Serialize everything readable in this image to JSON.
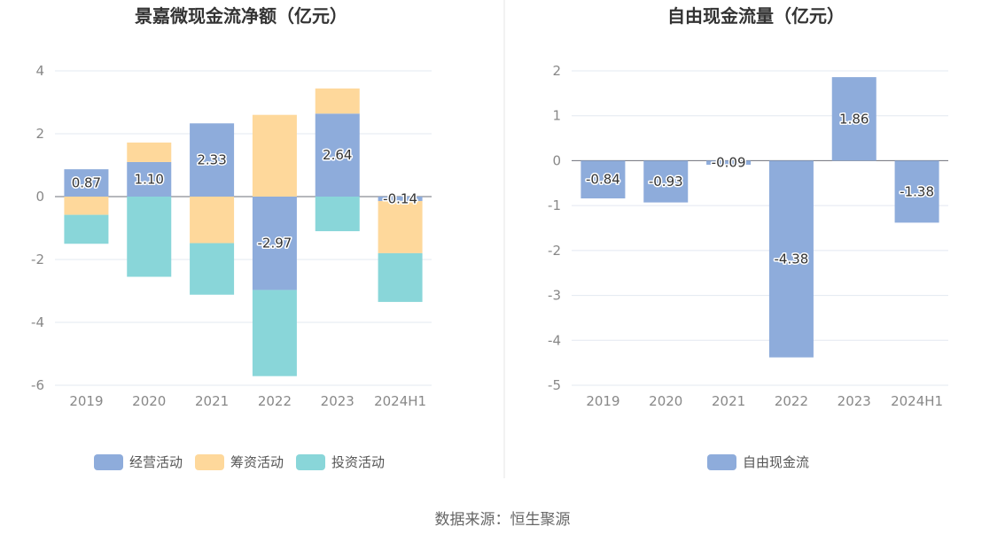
{
  "source_text": "数据来源：恒生聚源",
  "chart_data": [
    {
      "type": "bar",
      "stacked": true,
      "title": "景嘉微现金流净额（亿元）",
      "categories": [
        "2019",
        "2020",
        "2021",
        "2022",
        "2023",
        "2024H1"
      ],
      "ylim": [
        -6,
        4
      ],
      "yticks": [
        "4",
        "2",
        "0",
        "-2",
        "-4",
        "-6"
      ],
      "grid": true,
      "legend_position": "bottom",
      "series": [
        {
          "name": "经营活动",
          "color": "#8eacdb",
          "values": [
            0.87,
            1.1,
            2.33,
            -2.97,
            2.64,
            -0.14
          ],
          "labels": [
            "0.87",
            "1.10",
            "2.33",
            "-2.97",
            "2.64",
            "-0.14"
          ]
        },
        {
          "name": "筹资活动",
          "color": "#fed89b",
          "values": [
            -0.58,
            0.62,
            -1.48,
            2.6,
            0.8,
            -1.66
          ]
        },
        {
          "name": "投资活动",
          "color": "#89d6d9",
          "values": [
            -0.92,
            -2.55,
            -1.64,
            -2.74,
            -1.1,
            -1.55
          ]
        }
      ]
    },
    {
      "type": "bar",
      "title": "自由现金流量（亿元）",
      "categories": [
        "2019",
        "2020",
        "2021",
        "2022",
        "2023",
        "2024H1"
      ],
      "ylim": [
        -5,
        2
      ],
      "yticks": [
        "2",
        "1",
        "0",
        "-1",
        "-2",
        "-3",
        "-4",
        "-5"
      ],
      "grid": true,
      "legend_position": "bottom",
      "series": [
        {
          "name": "自由现金流",
          "color": "#8eacdb",
          "values": [
            -0.84,
            -0.93,
            -0.09,
            -4.38,
            1.86,
            -1.38
          ],
          "labels": [
            "-0.84",
            "-0.93",
            "-0.09",
            "-4.38",
            "1.86",
            "-1.38"
          ]
        }
      ]
    }
  ]
}
